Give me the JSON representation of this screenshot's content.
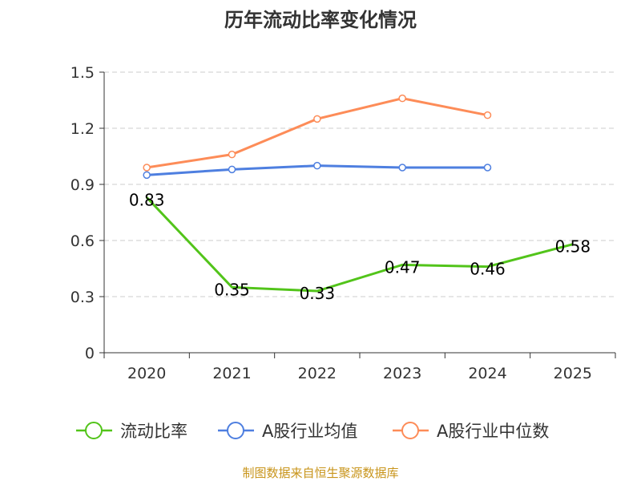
{
  "chart_data": {
    "type": "line",
    "title": "历年流动比率变化情况",
    "categories": [
      "2020",
      "2021",
      "2022",
      "2023",
      "2024",
      "2025"
    ],
    "ylim": [
      0,
      1.5
    ],
    "yticks": [
      "0",
      "0.3",
      "0.6",
      "0.9",
      "1.2",
      "1.5"
    ],
    "ytick_values": [
      0,
      0.3,
      0.6,
      0.9,
      1.2,
      1.5
    ],
    "grid": true,
    "legend_position": "bottom",
    "series": [
      {
        "name": "流动比率",
        "color": "#52c41a",
        "values": [
          0.83,
          0.35,
          0.33,
          0.47,
          0.46,
          0.58
        ],
        "labels": [
          "0.83",
          "0.35",
          "0.33",
          "0.47",
          "0.46",
          "0.58"
        ],
        "show_markers": false
      },
      {
        "name": "A股行业均值",
        "color": "#4e7fe0",
        "values": [
          0.95,
          0.98,
          1.0,
          0.99,
          0.99,
          null
        ],
        "show_markers": true
      },
      {
        "name": "A股行业中位数",
        "color": "#fd8c58",
        "values": [
          0.99,
          1.06,
          1.25,
          1.36,
          1.27,
          null
        ],
        "show_markers": true
      }
    ],
    "source": "制图数据来自恒生聚源数据库"
  }
}
